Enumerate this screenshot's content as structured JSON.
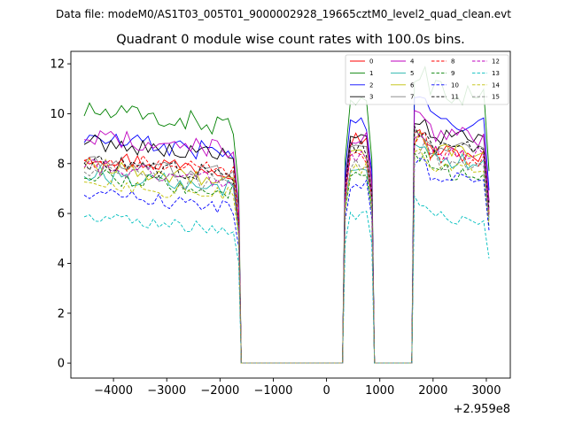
{
  "chart_data": {
    "type": "line",
    "suptitle": "Data file: modeM0/AS1T03_005T01_9000002928_19665cztM0_level2_quad_clean.evt",
    "title": "Quadrant 0 module wise count rates with 100.0s bins.",
    "xlabel": "",
    "ylabel": "",
    "x_offset_text": "+2.959e8",
    "xlim": [
      -4800,
      3450
    ],
    "ylim": [
      -0.6,
      12.5
    ],
    "xticks": [
      -4000,
      -3000,
      -2000,
      -1000,
      0,
      1000,
      2000,
      3000
    ],
    "xtick_labels": [
      "−4000",
      "−3000",
      "−2000",
      "−1000",
      "0",
      "1000",
      "2000",
      "3000"
    ],
    "yticks": [
      0,
      2,
      4,
      6,
      8,
      10,
      12
    ],
    "ytick_labels": [
      "0",
      "2",
      "4",
      "6",
      "8",
      "10",
      "12"
    ],
    "legend_position": "top-right",
    "segments": [
      {
        "start": -4550,
        "end": -1650,
        "step": 100
      },
      {
        "start": 350,
        "end": 850,
        "step": 100
      },
      {
        "start": 1650,
        "end": 3050,
        "step": 100
      }
    ],
    "series": [
      {
        "name": "0",
        "color": "#ff0000",
        "dash": "solid",
        "seg_levels": [
          8.0,
          9.0,
          8.6
        ]
      },
      {
        "name": "1",
        "color": "#008000",
        "dash": "solid",
        "seg_levels": [
          9.8,
          10.2,
          11.0
        ]
      },
      {
        "name": "2",
        "color": "#0000ff",
        "dash": "solid",
        "seg_levels": [
          8.7,
          9.6,
          9.9
        ]
      },
      {
        "name": "3",
        "color": "#000000",
        "dash": "solid",
        "seg_levels": [
          8.6,
          9.1,
          9.2
        ]
      },
      {
        "name": "4",
        "color": "#bf00bf",
        "dash": "solid",
        "seg_levels": [
          8.8,
          9.0,
          9.3
        ]
      },
      {
        "name": "5",
        "color": "#20b2aa",
        "dash": "solid",
        "seg_levels": [
          7.3,
          8.0,
          8.3
        ]
      },
      {
        "name": "6",
        "color": "#bfbf00",
        "dash": "solid",
        "seg_levels": [
          7.6,
          8.2,
          8.6
        ]
      },
      {
        "name": "7",
        "color": "#808080",
        "dash": "solid",
        "seg_levels": [
          7.8,
          8.5,
          8.8
        ]
      },
      {
        "name": "8",
        "color": "#ff0000",
        "dash": "dashed",
        "seg_levels": [
          7.9,
          8.3,
          8.5
        ]
      },
      {
        "name": "9",
        "color": "#008000",
        "dash": "dashed",
        "seg_levels": [
          7.2,
          7.6,
          7.8
        ]
      },
      {
        "name": "10",
        "color": "#0000ff",
        "dash": "dashed",
        "seg_levels": [
          6.5,
          7.2,
          7.6
        ]
      },
      {
        "name": "11",
        "color": "#000000",
        "dash": "dashed",
        "seg_levels": [
          7.8,
          8.6,
          8.8
        ]
      },
      {
        "name": "12",
        "color": "#bf00bf",
        "dash": "dashed",
        "seg_levels": [
          7.6,
          8.3,
          8.6
        ]
      },
      {
        "name": "13",
        "color": "#00bfbf",
        "dash": "dashed",
        "seg_levels": [
          5.6,
          6.0,
          6.0
        ]
      },
      {
        "name": "14",
        "color": "#bfbf00",
        "dash": "dashed",
        "seg_levels": [
          7.0,
          7.7,
          8.0
        ]
      },
      {
        "name": "15",
        "color": "#808080",
        "dash": "dashed",
        "seg_levels": [
          7.4,
          8.0,
          8.2
        ]
      }
    ]
  }
}
